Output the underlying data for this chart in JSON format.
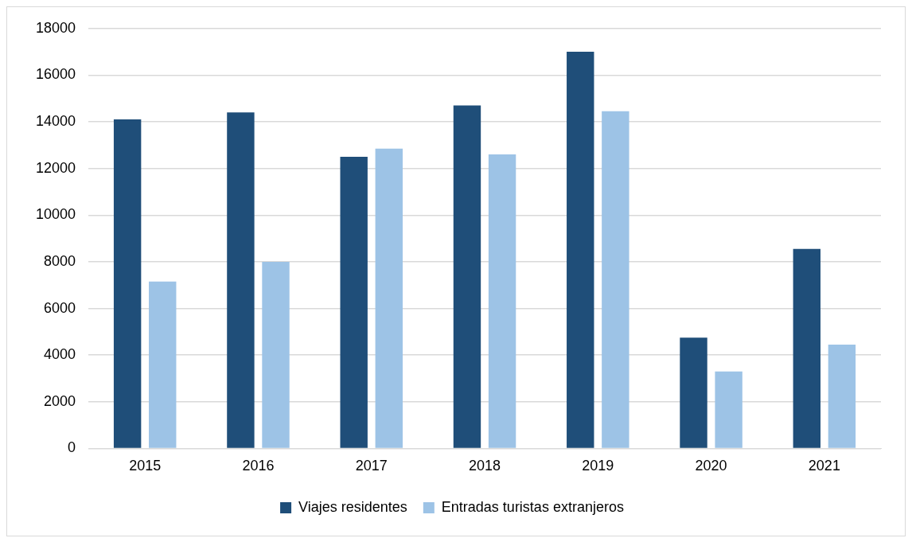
{
  "chart_data": {
    "type": "bar",
    "categories": [
      "2015",
      "2016",
      "2017",
      "2018",
      "2019",
      "2020",
      "2021"
    ],
    "series": [
      {
        "name": "Viajes residentes",
        "color": "#1f4e79",
        "values": [
          14100,
          14400,
          12500,
          14700,
          17000,
          4750,
          8550
        ]
      },
      {
        "name": "Entradas turistas extranjeros",
        "color": "#9dc3e6",
        "values": [
          7150,
          8000,
          12850,
          12600,
          14450,
          3300,
          4450
        ]
      }
    ],
    "ylim": [
      0,
      18000
    ],
    "yticks": [
      0,
      2000,
      4000,
      6000,
      8000,
      10000,
      12000,
      14000,
      16000,
      18000
    ],
    "grid": "y",
    "legend": "bottom"
  }
}
